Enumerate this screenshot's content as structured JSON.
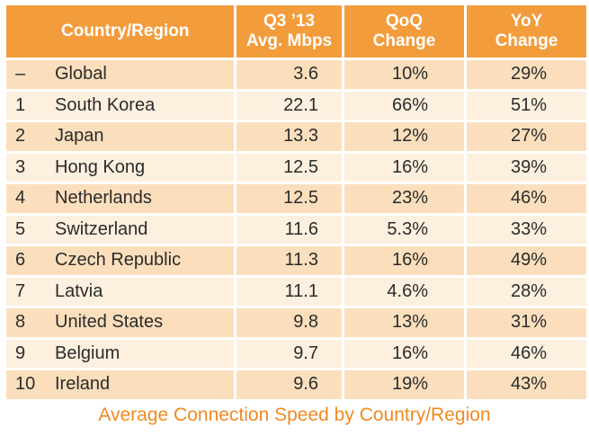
{
  "headers": {
    "country": "Country/Region",
    "avg_line1": "Q3 ’13",
    "avg_line2": "Avg. Mbps",
    "qoq_line1": "QoQ",
    "qoq_line2": "Change",
    "yoy_line1": "YoY",
    "yoy_line2": "Change"
  },
  "rows": [
    {
      "rank": "–",
      "country": "Global",
      "avg": "3.6",
      "qoq": "10%",
      "yoy": "29%"
    },
    {
      "rank": "1",
      "country": "South Korea",
      "avg": "22.1",
      "qoq": "66%",
      "yoy": "51%"
    },
    {
      "rank": "2",
      "country": "Japan",
      "avg": "13.3",
      "qoq": "12%",
      "yoy": "27%"
    },
    {
      "rank": "3",
      "country": "Hong Kong",
      "avg": "12.5",
      "qoq": "16%",
      "yoy": "39%"
    },
    {
      "rank": "4",
      "country": "Netherlands",
      "avg": "12.5",
      "qoq": "23%",
      "yoy": "46%"
    },
    {
      "rank": "5",
      "country": "Switzerland",
      "avg": "11.6",
      "qoq": "5.3%",
      "yoy": "33%"
    },
    {
      "rank": "6",
      "country": "Czech Republic",
      "avg": "11.3",
      "qoq": "16%",
      "yoy": "49%"
    },
    {
      "rank": "7",
      "country": "Latvia",
      "avg": "11.1",
      "qoq": "4.6%",
      "yoy": "28%"
    },
    {
      "rank": "8",
      "country": "United States",
      "avg": "9.8",
      "qoq": "13%",
      "yoy": "31%"
    },
    {
      "rank": "9",
      "country": "Belgium",
      "avg": "9.7",
      "qoq": "16%",
      "yoy": "46%"
    },
    {
      "rank": "10",
      "country": "Ireland",
      "avg": "9.6",
      "qoq": "19%",
      "yoy": "43%"
    }
  ],
  "caption": "Average Connection Speed by Country/Region",
  "colors": {
    "header_bg": "#f39c3c",
    "row_dark": "#fbdfbd",
    "row_light": "#fdf0de",
    "caption": "#f08a24"
  }
}
